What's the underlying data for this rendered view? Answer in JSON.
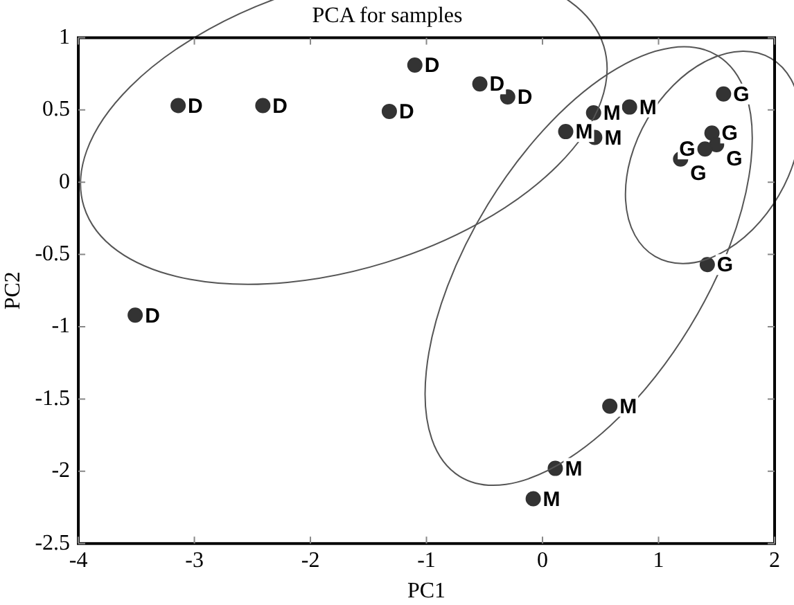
{
  "chart_data": {
    "type": "scatter",
    "title": "PCA for samples",
    "xlabel": "PC1",
    "ylabel": "PC2",
    "xlim": [
      -4,
      2
    ],
    "xticks": [
      -4,
      -3,
      -2,
      -1,
      0,
      1,
      2
    ],
    "ylim": [
      -2.5,
      1
    ],
    "yticks": [
      -2.5,
      -2,
      -1.5,
      -1,
      -0.5,
      0,
      0.5,
      1
    ],
    "grid": false,
    "legend": false,
    "marker": "circle",
    "series": [
      {
        "name": "D",
        "color": "#333333",
        "x": [
          -3.14,
          -2.41,
          -1.32,
          -1.1,
          -0.54,
          -0.3,
          -3.51
        ],
        "values": [
          0.53,
          0.53,
          0.49,
          0.81,
          0.68,
          0.59,
          -0.92
        ]
      },
      {
        "name": "M",
        "color": "#333333",
        "x": [
          0.2,
          0.44,
          0.45,
          0.75,
          0.58,
          0.11,
          -0.08
        ],
        "values": [
          0.35,
          0.48,
          0.31,
          0.52,
          -1.55,
          -1.98,
          -2.19
        ]
      },
      {
        "name": "G",
        "color": "#333333",
        "x": [
          1.56,
          1.46,
          1.5,
          1.4,
          1.19,
          1.42
        ],
        "values": [
          0.61,
          0.34,
          0.26,
          0.23,
          0.16,
          -0.57
        ]
      }
    ]
  }
}
